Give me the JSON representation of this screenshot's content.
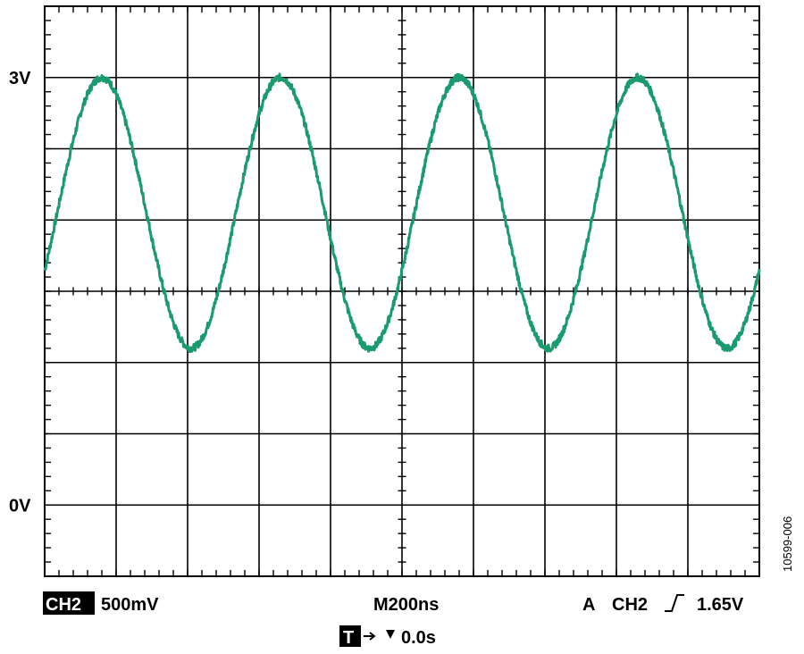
{
  "chart_data": {
    "type": "line",
    "title": "",
    "xlabel": "",
    "ylabel": "",
    "x_unit": "ns",
    "y_unit": "V",
    "xlim": [
      0,
      2000
    ],
    "ylim": [
      -0.5,
      3.5
    ],
    "x_divisions": 10,
    "y_divisions": 8,
    "grid": true,
    "y_tick_labels": [
      {
        "value": 3,
        "label": "3V"
      },
      {
        "value": 0,
        "label": "0V"
      }
    ],
    "series": [
      {
        "color": "#1a9b6e",
        "waveform": "sine",
        "amplitude_v": 0.95,
        "offset_v": 2.05,
        "period_ns": 500,
        "first_peak_ns": 160,
        "approx_peak_v": 3.0,
        "approx_trough_v": 1.1
      }
    ]
  },
  "readout": {
    "channel_badge": "CH2",
    "channel_scale": "500mV",
    "timebase": "M200ns",
    "trigger": {
      "mode": "A",
      "channel": "CH2",
      "level": "1.65V"
    },
    "trigger_badge": "T",
    "trigger_position": "0.0s"
  },
  "figure_id": "10599-006",
  "colors": {
    "trace": "#1a9b6e",
    "grid": "#000000",
    "background": "#ffffff"
  }
}
